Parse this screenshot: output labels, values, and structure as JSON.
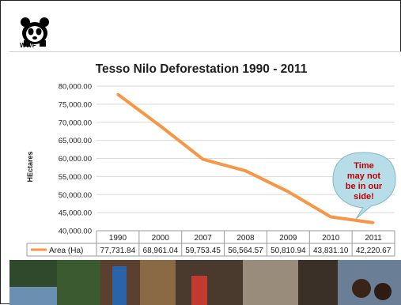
{
  "logo": {
    "text": "WWF"
  },
  "chart_data": {
    "type": "line",
    "title": "Tesso Nilo Deforestation 1990 - 2011",
    "ylabel": "HEctares",
    "xlabel": "",
    "categories": [
      "1990",
      "2000",
      "2007",
      "2008",
      "2009",
      "2010",
      "2011"
    ],
    "series": [
      {
        "name": "Area (Ha)",
        "values": [
          77731.84,
          68961.04,
          59753.45,
          56564.57,
          50810.94,
          43831.1,
          42220.67
        ],
        "value_labels": [
          "77,731.84",
          "68,961.04",
          "59,753.45",
          "56,564.57",
          "50,810.94",
          "43,831.10",
          "42,220.67"
        ],
        "color": "#f79646"
      }
    ],
    "ylim": [
      40000,
      80000
    ],
    "ytick_labels": [
      "80,000.00",
      "75,000.00",
      "70,000.00",
      "65,000.00",
      "60,000.00",
      "55,000.00",
      "50,000.00",
      "45,000.00",
      "40,000.00"
    ],
    "ytick_values": [
      80000,
      75000,
      70000,
      65000,
      60000,
      55000,
      50000,
      45000,
      40000
    ],
    "grid": true,
    "data_table": true,
    "annotation": {
      "lines": [
        "Time",
        "may not",
        "be in our",
        "side!"
      ],
      "text_color": "#c00000",
      "fill": "#b7dde8"
    }
  },
  "colors": {
    "line": "#f79646",
    "grid": "#d9d9d9",
    "text": "#1e1e1e"
  }
}
